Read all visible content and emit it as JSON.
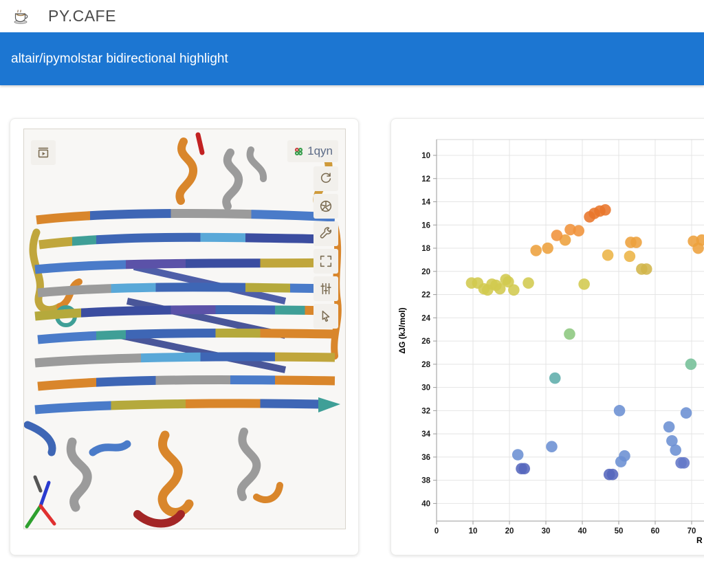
{
  "header": {
    "brand": "PY.CAFE",
    "logo_icon": "coffee-cup-icon"
  },
  "banner": {
    "title": "altair/ipymolstar bidirectional highlight",
    "bg_color": "#1c76d2",
    "text_color": "#ffffff"
  },
  "viewer": {
    "pdb_id": "1qyn",
    "pdb_icon": "pdb-flower-icon",
    "top_left_button": {
      "icon": "expand-panel-icon"
    },
    "right_toolbar": [
      {
        "icon": "reset-camera-icon"
      },
      {
        "icon": "screenshot-icon"
      },
      {
        "icon": "controls-wrench-icon"
      },
      {
        "icon": "expand-viewport-icon"
      },
      {
        "icon": "settings-sliders-icon"
      },
      {
        "icon": "selection-cursor-icon"
      }
    ],
    "background": "#f8f7f5",
    "icon_color": "#7b6c52"
  },
  "chart_data": {
    "type": "scatter",
    "ylabel": "ΔG (kJ/mol)",
    "xlabel": "R",
    "x_ticks": [
      0,
      10,
      20,
      30,
      40,
      50,
      60,
      70
    ],
    "y_ticks": [
      10,
      12,
      14,
      16,
      18,
      20,
      22,
      24,
      26,
      28,
      30,
      32,
      34,
      36,
      38,
      40
    ],
    "y_inverted": true,
    "x_visible_range": [
      0,
      73.5
    ],
    "y_visible_range": [
      8.6,
      41.5
    ],
    "grid": true,
    "points": [
      [
        9.6,
        21.0,
        "#d2c94f"
      ],
      [
        11.3,
        21.0,
        "#d2c94f"
      ],
      [
        13.0,
        21.5,
        "#d2c94f"
      ],
      [
        14.0,
        21.6,
        "#d2c94f"
      ],
      [
        15.2,
        21.1,
        "#d2c94f"
      ],
      [
        16.3,
        21.2,
        "#d2c94f"
      ],
      [
        17.4,
        21.5,
        "#d2c94f"
      ],
      [
        19.0,
        20.7,
        "#d2c94f"
      ],
      [
        19.7,
        20.9,
        "#d2c94f"
      ],
      [
        21.2,
        21.6,
        "#d2c94f"
      ],
      [
        25.2,
        21.0,
        "#d2c94f"
      ],
      [
        40.5,
        21.1,
        "#d2c94f"
      ],
      [
        27.3,
        18.2,
        "#eda03c"
      ],
      [
        30.5,
        18.0,
        "#eda03c"
      ],
      [
        35.3,
        17.3,
        "#eda03c"
      ],
      [
        33.0,
        16.9,
        "#f0923a"
      ],
      [
        36.7,
        16.4,
        "#f0923a"
      ],
      [
        39.0,
        16.5,
        "#f0923a"
      ],
      [
        42.0,
        15.3,
        "#e8752a"
      ],
      [
        43.3,
        15.0,
        "#e8752a"
      ],
      [
        44.8,
        14.8,
        "#e8752a"
      ],
      [
        46.3,
        14.7,
        "#e8752a"
      ],
      [
        47.0,
        18.6,
        "#ecb446"
      ],
      [
        53.0,
        18.7,
        "#ecb446"
      ],
      [
        53.3,
        17.5,
        "#eda03c"
      ],
      [
        54.8,
        17.5,
        "#eda03c"
      ],
      [
        56.3,
        19.8,
        "#d2b54a"
      ],
      [
        57.6,
        19.8,
        "#d2b54a"
      ],
      [
        70.5,
        17.4,
        "#eda03c"
      ],
      [
        71.8,
        18.0,
        "#eda03c"
      ],
      [
        72.8,
        17.3,
        "#eda03c"
      ],
      [
        36.5,
        25.4,
        "#8cc77e"
      ],
      [
        32.5,
        29.2,
        "#5fadab"
      ],
      [
        69.8,
        28.0,
        "#74bf97"
      ],
      [
        50.2,
        32.0,
        "#6b8fd3"
      ],
      [
        68.5,
        32.2,
        "#6b8fd3"
      ],
      [
        63.8,
        33.4,
        "#6b8fd3"
      ],
      [
        22.3,
        35.8,
        "#6b8fd3"
      ],
      [
        31.6,
        35.1,
        "#6b8fd3"
      ],
      [
        50.6,
        36.4,
        "#6b8fd3"
      ],
      [
        51.6,
        35.9,
        "#6b8fd3"
      ],
      [
        64.6,
        34.6,
        "#6b8fd3"
      ],
      [
        65.6,
        35.4,
        "#6b8fd3"
      ],
      [
        67.1,
        36.5,
        "#6378c8"
      ],
      [
        67.9,
        36.5,
        "#6378c8"
      ],
      [
        23.3,
        37.0,
        "#5566bd"
      ],
      [
        24.1,
        37.0,
        "#5566bd"
      ],
      [
        47.4,
        37.5,
        "#5566bd"
      ],
      [
        48.3,
        37.5,
        "#5566bd"
      ]
    ]
  }
}
